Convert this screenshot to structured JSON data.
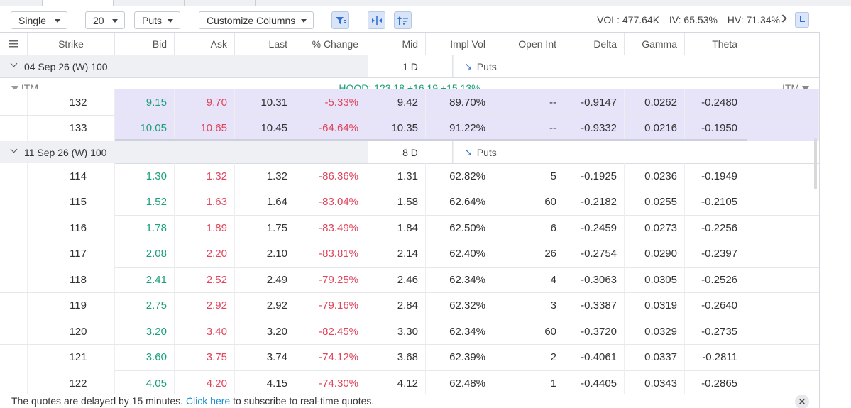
{
  "toolbar": {
    "mode": "Single",
    "count": "20",
    "type": "Puts",
    "customize": "Customize Columns",
    "vol": "VOL: 477.64K",
    "iv": "IV: 65.53%",
    "hv": "HV: 71.34%"
  },
  "icons": {
    "filter": "filter-icon",
    "columns": "columns-icon",
    "sort": "sort-icon",
    "clock": "clock-icon",
    "menu": "menu-icon",
    "close": "close-icon"
  },
  "colors": {
    "bid": "#1aa07a",
    "ask": "#e0455c",
    "itm_shade": "#e7e3f9",
    "accent": "#2f6fd6"
  },
  "columns": [
    "Strike",
    "Bid",
    "Ask",
    "Last",
    "% Change",
    "Mid",
    "Impl Vol",
    "Open Int",
    "Delta",
    "Gamma",
    "Theta"
  ],
  "group1": {
    "title": "04 Sep 26 (W) 100",
    "days": "1 D",
    "type": "Puts"
  },
  "itm_banner": {
    "left": "ITM",
    "quote": "HOOD: 123.18 +16.19 +15.13%",
    "right": "ITM"
  },
  "group1_rows": [
    [
      "132",
      "9.15",
      "9.70",
      "10.31",
      "-5.33%",
      "9.42",
      "89.70%",
      "--",
      "-0.9147",
      "0.0262",
      "-0.2480"
    ],
    [
      "133",
      "10.05",
      "10.65",
      "10.45",
      "-64.64%",
      "10.35",
      "91.22%",
      "--",
      "-0.9332",
      "0.0216",
      "-0.1950"
    ]
  ],
  "group2": {
    "title": "11 Sep 26 (W) 100",
    "days": "8 D",
    "type": "Puts"
  },
  "group2_rows": [
    [
      "114",
      "1.30",
      "1.32",
      "1.32",
      "-86.36%",
      "1.31",
      "62.82%",
      "5",
      "-0.1925",
      "0.0236",
      "-0.1949"
    ],
    [
      "115",
      "1.52",
      "1.63",
      "1.64",
      "-83.04%",
      "1.58",
      "62.64%",
      "60",
      "-0.2182",
      "0.0255",
      "-0.2105"
    ],
    [
      "116",
      "1.78",
      "1.89",
      "1.75",
      "-83.49%",
      "1.84",
      "62.50%",
      "6",
      "-0.2459",
      "0.0273",
      "-0.2256"
    ],
    [
      "117",
      "2.08",
      "2.20",
      "2.10",
      "-83.81%",
      "2.14",
      "62.40%",
      "26",
      "-0.2754",
      "0.0290",
      "-0.2397"
    ],
    [
      "118",
      "2.41",
      "2.52",
      "2.49",
      "-79.25%",
      "2.46",
      "62.34%",
      "4",
      "-0.3063",
      "0.0305",
      "-0.2526"
    ],
    [
      "119",
      "2.75",
      "2.92",
      "2.92",
      "-79.16%",
      "2.84",
      "62.32%",
      "3",
      "-0.3387",
      "0.0319",
      "-0.2640"
    ],
    [
      "120",
      "3.20",
      "3.40",
      "3.20",
      "-82.45%",
      "3.30",
      "62.34%",
      "60",
      "-0.3720",
      "0.0329",
      "-0.2735"
    ],
    [
      "121",
      "3.60",
      "3.75",
      "3.74",
      "-74.12%",
      "3.68",
      "62.39%",
      "2",
      "-0.4061",
      "0.0337",
      "-0.2811"
    ],
    [
      "122",
      "4.05",
      "4.20",
      "4.15",
      "-74.30%",
      "4.12",
      "62.48%",
      "1",
      "-0.4405",
      "0.0343",
      "-0.2865"
    ]
  ],
  "footer": {
    "before": "The quotes are delayed by 15 minutes.",
    "link": "Click here",
    "after": "to subscribe to real-time quotes."
  }
}
